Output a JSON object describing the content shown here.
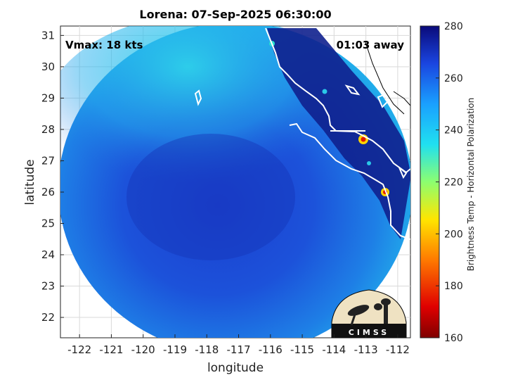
{
  "title": "Lorena: 07-Sep-2025 06:30:00",
  "vmax_label": "Vmax: 18 kts",
  "time_away": "01:03 away",
  "xlabel": "longitude",
  "ylabel": "latitude",
  "x_ticks": [
    "-122",
    "-121",
    "-120",
    "-119",
    "-118",
    "-117",
    "-116",
    "-115",
    "-114",
    "-113",
    "-112"
  ],
  "y_ticks": [
    "31",
    "30",
    "29",
    "28",
    "27",
    "26",
    "25",
    "24",
    "23",
    "22"
  ],
  "colorbar": {
    "label": "Brightness Temp - Horizontal Polarization",
    "ticks": [
      "280",
      "260",
      "240",
      "220",
      "200",
      "180",
      "160"
    ],
    "range": [
      160,
      280
    ]
  },
  "logo": {
    "text": "CIMSS"
  },
  "colors": {
    "background_field": "#1f4fd6",
    "deep_blue": "#1a30b8",
    "cyan": "#2fd0e8",
    "coastline": "#ffffff"
  }
}
